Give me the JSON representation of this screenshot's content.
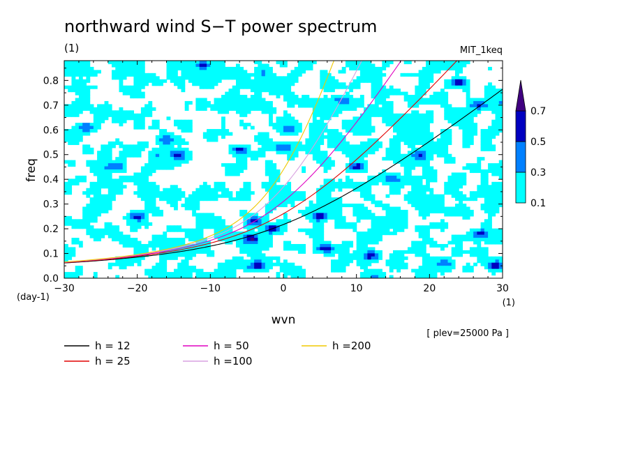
{
  "chart_data": {
    "type": "heatmap",
    "title": "northward wind S−T power spectrum",
    "subtitle_left": "(1)",
    "subtitle_right": "MIT_1keq",
    "xlabel": "wvn",
    "ylabel": "freq",
    "x_unit": "(1)",
    "y_unit": "(day-1)",
    "xlim": [
      -30,
      30
    ],
    "ylim": [
      0,
      0.88
    ],
    "xticks": [
      -30,
      -20,
      -10,
      0,
      10,
      20,
      30
    ],
    "yticks": [
      0.0,
      0.1,
      0.2,
      0.3,
      0.4,
      0.5,
      0.6,
      0.7,
      0.8
    ],
    "note": "[ plev=25000 Pa ]",
    "colorbar": {
      "levels": [
        0.1,
        0.3,
        0.5,
        0.7
      ],
      "colors": [
        "#00ffff",
        "#0080ff",
        "#0000c0",
        "#400080"
      ],
      "extend": "max"
    },
    "contour_fill": {
      "threshold": 0.1,
      "seed": 1729,
      "description_blobs": [
        {
          "x": -4.5,
          "y": 0.16,
          "v": 0.62
        },
        {
          "x": -3.5,
          "y": 0.05,
          "v": 0.55
        },
        {
          "x": -4,
          "y": 0.23,
          "v": 0.5
        },
        {
          "x": -1.5,
          "y": 0.2,
          "v": 0.45
        },
        {
          "x": 5,
          "y": 0.25,
          "v": 0.55
        },
        {
          "x": 6,
          "y": 0.12,
          "v": 0.6
        },
        {
          "x": 10,
          "y": 0.45,
          "v": 0.5
        },
        {
          "x": 15,
          "y": 0.4,
          "v": 0.45
        },
        {
          "x": 24,
          "y": 0.79,
          "v": 0.6
        },
        {
          "x": 27,
          "y": 0.18,
          "v": 0.5
        },
        {
          "x": 29,
          "y": 0.05,
          "v": 0.45
        },
        {
          "x": -11,
          "y": 0.86,
          "v": 0.5
        },
        {
          "x": -14.5,
          "y": 0.5,
          "v": 0.45
        },
        {
          "x": -16,
          "y": 0.56,
          "v": 0.45
        },
        {
          "x": -23,
          "y": 0.45,
          "v": 0.5
        },
        {
          "x": -27,
          "y": 0.61,
          "v": 0.45
        },
        {
          "x": 0,
          "y": 0.53,
          "v": 0.45
        },
        {
          "x": 1,
          "y": 0.6,
          "v": 0.45
        },
        {
          "x": 18.5,
          "y": 0.5,
          "v": 0.5
        },
        {
          "x": 12,
          "y": 0.09,
          "v": 0.5
        },
        {
          "x": 22,
          "y": 0.06,
          "v": 0.45
        },
        {
          "x": -6,
          "y": 0.52,
          "v": 0.45
        },
        {
          "x": -20,
          "y": 0.25,
          "v": 0.45
        },
        {
          "x": 8,
          "y": 0.72,
          "v": 0.45
        },
        {
          "x": 27,
          "y": 0.7,
          "v": 0.45
        }
      ]
    },
    "series": [
      {
        "name": "h = 12",
        "h": 12,
        "color": "#000000"
      },
      {
        "name": "h = 25",
        "h": 25,
        "color": "#e00000"
      },
      {
        "name": "h = 50",
        "h": 50,
        "color": "#e000c0"
      },
      {
        "name": "h =100",
        "h": 100,
        "color": "#d8a0e0"
      },
      {
        "name": "h =200",
        "h": 200,
        "color": "#f0c800"
      }
    ],
    "grid": false,
    "legend_placement": "bottom"
  }
}
